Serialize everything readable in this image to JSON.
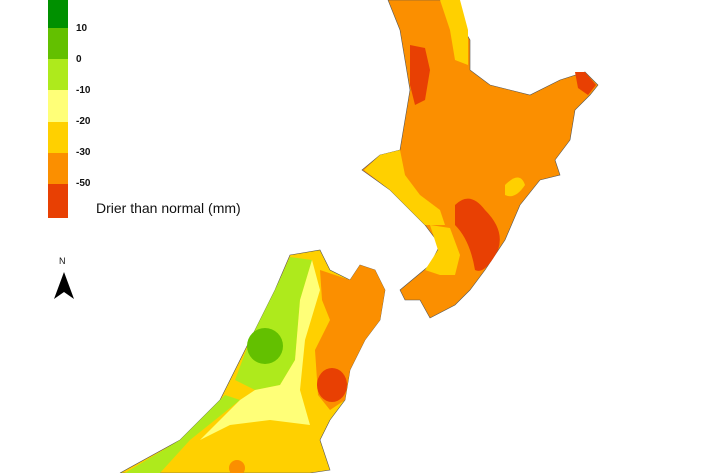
{
  "legend": {
    "title": "Drier than normal (mm)",
    "bins": [
      {
        "color": "#009000"
      },
      {
        "label": "10",
        "color": "#63c000"
      },
      {
        "label": "0",
        "color": "#aeea1c"
      },
      {
        "label": "-10",
        "color": "#ffff78"
      },
      {
        "label": "-20",
        "color": "#ffd000"
      },
      {
        "label": "-30",
        "color": "#fb8f00"
      },
      {
        "label": "-50",
        "color": "#e84003"
      }
    ]
  },
  "compass": {
    "label": "N",
    "icon": "north-arrow-icon"
  }
}
